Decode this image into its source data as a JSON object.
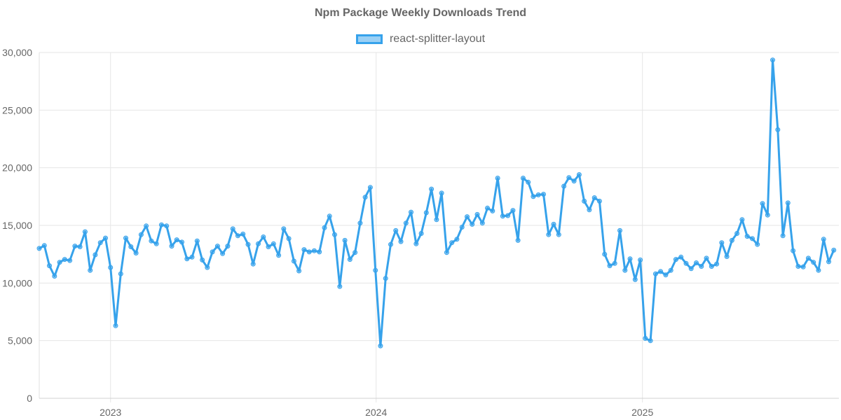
{
  "chart_data": {
    "type": "line",
    "title": "Npm Package Weekly Downloads Trend",
    "legend": {
      "position": "top-center"
    },
    "ylim": [
      0,
      30000
    ],
    "yticks": [
      0,
      5000,
      10000,
      15000,
      20000,
      25000,
      30000
    ],
    "ytick_labels": [
      "0",
      "5,000",
      "10,000",
      "15,000",
      "20,000",
      "25,000",
      "30,000"
    ],
    "x_start": "2022-09-25",
    "x_interval_days": 7,
    "xlim_days": [
      0,
      1099
    ],
    "xticks": [
      {
        "label": "2023",
        "day": 98
      },
      {
        "label": "2024",
        "day": 463
      },
      {
        "label": "2025",
        "day": 829
      }
    ],
    "series": [
      {
        "name": "react-splitter-layout",
        "color": "#36a2eb",
        "fill": "rgba(54,162,235,0.5)",
        "values": [
          13000,
          13250,
          11500,
          10600,
          11800,
          12050,
          11950,
          13200,
          13150,
          14450,
          11100,
          12450,
          13500,
          13900,
          11350,
          6300,
          10800,
          13900,
          13150,
          12600,
          14200,
          14950,
          13650,
          13400,
          15050,
          14950,
          13200,
          13750,
          13550,
          12100,
          12250,
          13650,
          12000,
          11350,
          12700,
          13200,
          12550,
          13200,
          14700,
          14100,
          14250,
          13350,
          11650,
          13400,
          14000,
          13150,
          13400,
          12400,
          14700,
          13850,
          11900,
          11050,
          12900,
          12700,
          12800,
          12700,
          14800,
          15800,
          14200,
          9700,
          13700,
          12050,
          12650,
          15200,
          17450,
          18300,
          11100,
          4550,
          10400,
          13350,
          14550,
          13600,
          15200,
          16150,
          13400,
          14300,
          16100,
          18150,
          15500,
          17800,
          12650,
          13500,
          13800,
          14850,
          15750,
          15100,
          15950,
          15200,
          16500,
          16250,
          19100,
          15800,
          15850,
          16300,
          13700,
          19100,
          18750,
          17500,
          17650,
          17700,
          14200,
          15100,
          14200,
          18400,
          19150,
          18850,
          19400,
          17100,
          16350,
          17400,
          17100,
          12500,
          11500,
          11700,
          14550,
          11100,
          12100,
          10300,
          12000,
          5200,
          5000,
          10800,
          11000,
          10700,
          11100,
          12050,
          12250,
          11700,
          11250,
          11750,
          11450,
          12150,
          11450,
          11650,
          13500,
          12300,
          13700,
          14300,
          15500,
          14050,
          13850,
          13350,
          16900,
          15900,
          29350,
          23300,
          14100,
          16950,
          12800,
          11450,
          11400,
          12150,
          11800,
          11100,
          13800,
          11850,
          12850
        ]
      }
    ]
  }
}
